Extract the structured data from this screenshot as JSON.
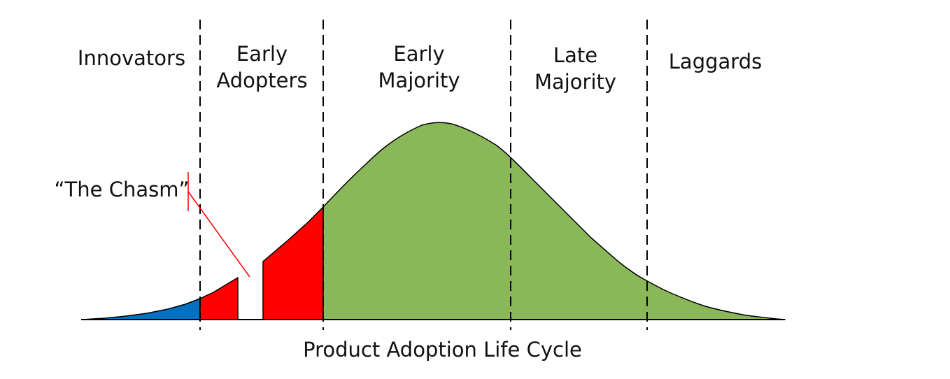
{
  "diagram": {
    "title": "Product Adoption Life Cycle",
    "chasm_label": "“The Chasm”",
    "segments": [
      {
        "key": "innovators",
        "lines": [
          "Innovators"
        ],
        "color": "#0070C0"
      },
      {
        "key": "early-adopters",
        "lines": [
          "Early",
          "Adopters"
        ],
        "color": "#FF0000"
      },
      {
        "key": "early-majority",
        "lines": [
          "Early",
          "Majority"
        ],
        "color": "#8AB858"
      },
      {
        "key": "late-majority",
        "lines": [
          "Late",
          "Majority"
        ],
        "color": "#8AB858"
      },
      {
        "key": "laggards",
        "lines": [
          "Laggards"
        ],
        "color": "#8AB858"
      }
    ],
    "colors": {
      "innovators": "#0070C0",
      "early_adopters": "#FF0000",
      "majority_laggards": "#8AB858",
      "chasm_pointer": "#FF0000",
      "outline": "#000000"
    }
  }
}
